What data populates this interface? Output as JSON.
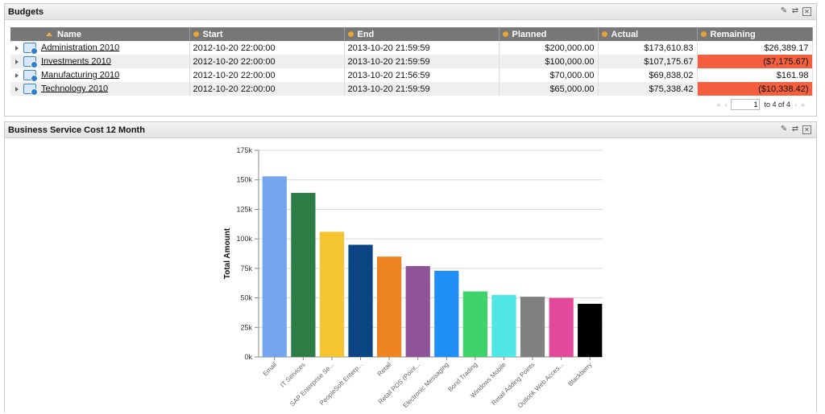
{
  "budgets": {
    "title": "Budgets",
    "columns": [
      "Name",
      "Start",
      "End",
      "Planned",
      "Actual",
      "Remaining"
    ],
    "rows": [
      {
        "name": "Administration 2010",
        "start": "2012-10-20 22:00:00",
        "end": "2013-10-20 21:59:59",
        "planned": "$200,000.00",
        "actual": "$173,610.83",
        "remaining": "$26,389.17",
        "negative": false
      },
      {
        "name": "Investments 2010",
        "start": "2012-10-20 22:00:00",
        "end": "2013-10-20 21:59:59",
        "planned": "$100,000.00",
        "actual": "$107,175.67",
        "remaining": "($7,175.67)",
        "negative": true
      },
      {
        "name": "Manufacturing 2010",
        "start": "2012-10-20 22:00:00",
        "end": "2013-10-20 21:56:59",
        "planned": "$70,000.00",
        "actual": "$69,838.02",
        "remaining": "$161.98",
        "negative": false
      },
      {
        "name": "Technology 2010",
        "start": "2012-10-20 22:00:00",
        "end": "2013-10-20 21:59:59",
        "planned": "$65,000.00",
        "actual": "$75,338.42",
        "remaining": "($10,338.42)",
        "negative": true
      }
    ],
    "pager": {
      "page": "1",
      "total_text": "to 4 of 4"
    }
  },
  "costs_panel": {
    "title": "Business Service Cost 12 Month"
  },
  "colors": {
    "negative": "#f4603f",
    "header": "#777777"
  },
  "chart_data": {
    "type": "bar",
    "title": "",
    "xlabel": "",
    "ylabel": "Total Amount",
    "ylim": [
      0,
      175000
    ],
    "yticks": [
      0,
      25000,
      50000,
      75000,
      100000,
      125000,
      150000,
      175000
    ],
    "ytick_labels": [
      "0k",
      "25k",
      "50k",
      "75k",
      "100k",
      "125k",
      "150k",
      "175k"
    ],
    "grid": true,
    "categories": [
      "Email",
      "IT Services",
      "SAP Enterprise Se...",
      "PeopleSoft Enterp...",
      "Retail",
      "Retail POS (Point...",
      "Electronic Messaging",
      "Bond Trading",
      "Windows Mobile",
      "Retail Adding Points",
      "Outlook Web Acces...",
      "Blackberry"
    ],
    "values": [
      153000,
      139000,
      106000,
      95000,
      85000,
      77000,
      73000,
      55500,
      52500,
      51000,
      50000,
      45000
    ],
    "bar_colors": [
      "#74a6ef",
      "#2e7d46",
      "#f5c431",
      "#0b4583",
      "#ee8421",
      "#8f5498",
      "#1f8ef5",
      "#3fd46a",
      "#50e6e6",
      "#808080",
      "#e3499a",
      "#000000"
    ]
  }
}
